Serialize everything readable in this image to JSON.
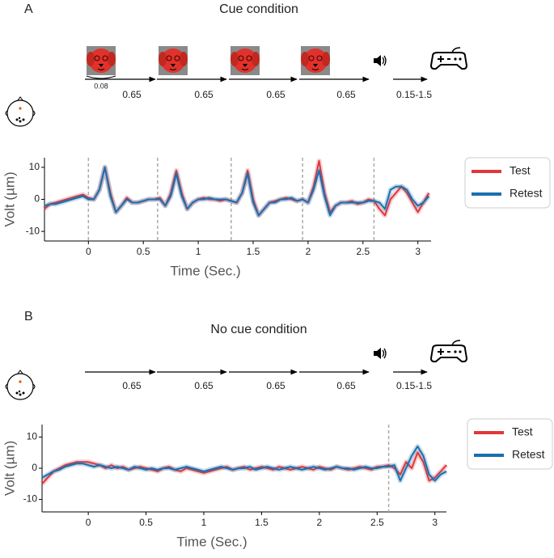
{
  "panels": [
    {
      "label": "A",
      "first_gap": "0.08",
      "durations": [
        "0.65",
        "0.65",
        "0.65",
        "0.65"
      ],
      "response_window": "0.15-1.5"
    },
    {
      "label": "B",
      "durations": [
        "0.65",
        "0.65",
        "0.65",
        "0.65"
      ],
      "response_window": "0.15-1.5"
    }
  ],
  "chart_data": [
    {
      "type": "line",
      "title": "Cue condition",
      "xlabel": "Time (Sec.)",
      "ylabel": "Volt (µm)",
      "xlim": [
        -0.4,
        3.12
      ],
      "ylim": [
        -13,
        13
      ],
      "xticks": [
        0,
        0.5,
        1,
        1.5,
        2,
        2.5,
        3
      ],
      "yticks": [
        -10,
        0,
        10
      ],
      "event_lines": [
        0,
        0.63,
        1.3,
        1.95,
        2.6
      ],
      "x": [
        -0.4,
        -0.35,
        -0.3,
        -0.25,
        -0.2,
        -0.15,
        -0.1,
        -0.05,
        0,
        0.05,
        0.1,
        0.15,
        0.2,
        0.25,
        0.3,
        0.35,
        0.4,
        0.45,
        0.5,
        0.55,
        0.6,
        0.65,
        0.7,
        0.75,
        0.8,
        0.85,
        0.9,
        0.95,
        1,
        1.05,
        1.1,
        1.15,
        1.2,
        1.25,
        1.3,
        1.35,
        1.4,
        1.45,
        1.5,
        1.55,
        1.6,
        1.65,
        1.7,
        1.75,
        1.8,
        1.85,
        1.9,
        1.95,
        2,
        2.05,
        2.1,
        2.15,
        2.2,
        2.25,
        2.3,
        2.35,
        2.4,
        2.45,
        2.5,
        2.55,
        2.6,
        2.65,
        2.7,
        2.75,
        2.8,
        2.85,
        2.9,
        2.95,
        3,
        3.05,
        3.1
      ],
      "series": [
        {
          "name": "Test",
          "color": "#e0373c",
          "values": [
            -3,
            -1.5,
            -1,
            -0.5,
            0,
            0.5,
            1,
            1.5,
            0.5,
            0,
            3,
            10,
            2,
            -4,
            -2,
            0.5,
            -1,
            -1,
            -0.5,
            0,
            0,
            0.5,
            -2,
            2,
            9,
            2,
            -3,
            -1,
            0,
            0.5,
            0,
            0,
            -0.5,
            0,
            -0.5,
            -1,
            2,
            9,
            0,
            -5,
            -3,
            -1,
            -0.5,
            0,
            0.5,
            0,
            -0.5,
            0,
            -1,
            4,
            12,
            2,
            -4,
            -2,
            -1,
            -1,
            -0.5,
            -1.5,
            -1,
            0,
            -0.5,
            -3,
            -5,
            0,
            2,
            4,
            2,
            -1,
            -4,
            -1,
            2
          ]
        },
        {
          "name": "Retest",
          "color": "#1a6fae",
          "values": [
            -2,
            -1.5,
            -1.5,
            -1,
            -0.5,
            0,
            0.5,
            1,
            0,
            0,
            3,
            10,
            1,
            -4,
            -2,
            0,
            -1,
            -1,
            -0.5,
            0,
            0,
            0,
            -2,
            1,
            8,
            1,
            -3,
            -1,
            0,
            0,
            0.5,
            0,
            0,
            0,
            -0.5,
            -1,
            2,
            8,
            -1,
            -5,
            -3,
            -1,
            -1,
            0,
            0,
            0.5,
            -0.5,
            0,
            -1,
            3,
            9,
            1,
            -5,
            -2,
            -1,
            -1,
            -1,
            -1,
            -1,
            -0.5,
            -0.5,
            -1,
            -3,
            3,
            4,
            4,
            3,
            0,
            -2,
            -1,
            1
          ]
        }
      ],
      "legend": "right"
    },
    {
      "type": "line",
      "title": "No cue condition",
      "xlabel": "Time (Sec.)",
      "ylabel": "Volt (µm)",
      "xlim": [
        -0.4,
        3.1
      ],
      "ylim": [
        -14,
        14
      ],
      "xticks": [
        0,
        0.5,
        1,
        1.5,
        2,
        2.5,
        3
      ],
      "yticks": [
        -10,
        0,
        10
      ],
      "event_lines": [
        2.6
      ],
      "x": [
        -0.4,
        -0.35,
        -0.3,
        -0.25,
        -0.2,
        -0.15,
        -0.1,
        -0.05,
        0,
        0.05,
        0.1,
        0.15,
        0.2,
        0.25,
        0.3,
        0.35,
        0.4,
        0.45,
        0.5,
        0.55,
        0.6,
        0.65,
        0.7,
        0.75,
        0.8,
        0.85,
        0.9,
        0.95,
        1,
        1.05,
        1.1,
        1.15,
        1.2,
        1.25,
        1.3,
        1.35,
        1.4,
        1.45,
        1.5,
        1.55,
        1.6,
        1.65,
        1.7,
        1.75,
        1.8,
        1.85,
        1.9,
        1.95,
        2,
        2.05,
        2.1,
        2.15,
        2.2,
        2.25,
        2.3,
        2.35,
        2.4,
        2.45,
        2.5,
        2.55,
        2.6,
        2.65,
        2.7,
        2.75,
        2.8,
        2.85,
        2.9,
        2.95,
        3,
        3.05,
        3.1
      ],
      "series": [
        {
          "name": "Test",
          "color": "#e0373c",
          "values": [
            -5,
            -3,
            -1,
            0,
            1,
            1.5,
            2,
            2,
            2,
            1.5,
            1,
            0,
            1,
            0,
            0.5,
            -0.5,
            0,
            0.5,
            0,
            -0.5,
            -1,
            0,
            0.5,
            -0.5,
            -1,
            0,
            -0.5,
            -1,
            -1.5,
            -1,
            -0.5,
            0,
            0.5,
            -0.5,
            0,
            0.5,
            -0.5,
            0,
            0.5,
            0,
            -0.5,
            0.5,
            0,
            -0.5,
            0,
            0.5,
            0,
            -0.5,
            0.5,
            0,
            -0.5,
            0.5,
            0,
            -0.5,
            0,
            0.5,
            0,
            -0.5,
            0.5,
            0.5,
            1,
            0,
            -2,
            2,
            0,
            5,
            2,
            -4,
            -3,
            -1,
            1
          ]
        },
        {
          "name": "Retest",
          "color": "#1a6fae",
          "values": [
            -3,
            -2,
            -1,
            -0.5,
            0.5,
            1,
            1.5,
            1.5,
            1,
            0.5,
            1,
            0.5,
            0,
            0.5,
            0,
            -0.5,
            0.5,
            0,
            -0.5,
            0,
            -0.5,
            0,
            0,
            -0.5,
            0,
            0.5,
            0,
            -0.5,
            -1,
            -0.5,
            0,
            0.5,
            0,
            -0.5,
            0,
            0,
            0.5,
            -0.5,
            0,
            0.5,
            0,
            -0.5,
            0,
            0.5,
            0,
            -0.5,
            0,
            0.5,
            0,
            -0.5,
            0,
            0.5,
            0,
            0,
            -0.5,
            0,
            0.5,
            0,
            0,
            0.5,
            0.5,
            1,
            -4,
            0,
            4,
            7,
            4,
            -2,
            -4,
            -2,
            -1
          ]
        }
      ],
      "legend": "right"
    }
  ]
}
